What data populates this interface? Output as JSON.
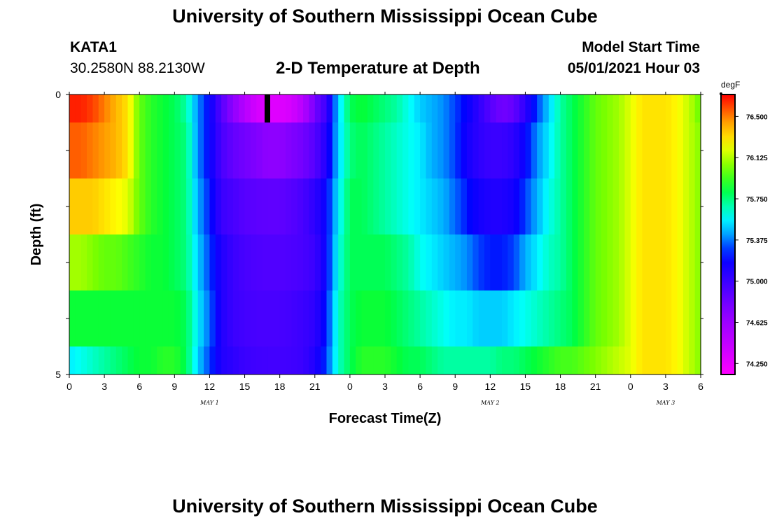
{
  "page": {
    "title_top": "University of Southern Mississippi Ocean Cube",
    "title_bottom": "University of Southern Mississippi Ocean Cube",
    "station_id": "KATA1",
    "station_coords": "30.2580N  88.2130W",
    "plot_title": "2-D Temperature at Depth",
    "model_start_label": "Model Start Time",
    "model_start_value": "05/01/2021 Hour 03"
  },
  "chart_data": {
    "type": "heatmap",
    "title": "2-D Temperature at Depth",
    "xlabel": "Forecast Time(Z)",
    "ylabel": "Depth (ft)",
    "x_range_hours": [
      0,
      54
    ],
    "y_range_ft": [
      0,
      5
    ],
    "x_tick_labels": [
      "0",
      "3",
      "6",
      "9",
      "12",
      "15",
      "18",
      "21",
      "0",
      "3",
      "6",
      "9",
      "12",
      "15",
      "18",
      "21",
      "0",
      "3",
      "6"
    ],
    "y_tick_labels": [
      "0",
      "5"
    ],
    "date_labels": [
      {
        "text": "MAY 1",
        "hour": 12
      },
      {
        "text": "MAY 2",
        "hour": 36
      },
      {
        "text": "MAY 3",
        "hour": 51
      }
    ],
    "colorbar": {
      "unit": "degF",
      "min": 74.15,
      "max": 76.7,
      "tick_labels": [
        "76.500",
        "76.125",
        "75.750",
        "75.375",
        "75.000",
        "74.625",
        "74.250"
      ],
      "tick_values": [
        76.5,
        76.125,
        75.75,
        75.375,
        75.0,
        74.625,
        74.25
      ]
    },
    "layer_depths_ft": [
      0.25,
      1.0,
      2.0,
      3.0,
      4.0,
      4.75
    ],
    "time_hours": [
      0,
      1,
      2,
      3,
      4,
      5,
      6,
      7,
      8,
      9,
      10,
      11,
      12,
      13,
      14,
      15,
      16,
      17,
      18,
      19,
      20,
      21,
      22,
      23,
      24,
      25,
      26,
      27,
      28,
      29,
      30,
      31,
      32,
      33,
      34,
      35,
      36,
      37,
      38,
      39,
      40,
      41,
      42,
      43,
      44,
      45,
      46,
      47,
      48,
      49,
      50,
      51,
      52,
      53,
      54
    ],
    "series": [
      {
        "name": "0.25 ft",
        "values": [
          76.65,
          76.65,
          76.6,
          76.5,
          76.4,
          76.3,
          76.0,
          75.9,
          75.85,
          75.8,
          75.7,
          75.4,
          75.2,
          74.9,
          74.7,
          74.5,
          74.35,
          74.3,
          74.3,
          74.35,
          74.5,
          74.8,
          75.0,
          75.5,
          75.8,
          75.85,
          75.8,
          75.75,
          75.7,
          75.6,
          75.5,
          75.45,
          75.4,
          75.3,
          75.2,
          75.05,
          74.9,
          74.8,
          74.85,
          75.05,
          75.3,
          75.5,
          75.7,
          75.8,
          75.9,
          76.0,
          76.05,
          76.1,
          76.2,
          76.3,
          76.3,
          76.3,
          76.25,
          76.15,
          76.0
        ]
      },
      {
        "name": "1.0 ft",
        "values": [
          76.55,
          76.55,
          76.5,
          76.45,
          76.4,
          76.3,
          76.0,
          75.9,
          75.85,
          75.8,
          75.75,
          75.4,
          75.2,
          74.95,
          74.85,
          74.8,
          74.75,
          74.7,
          74.7,
          74.75,
          74.8,
          74.9,
          75.1,
          75.5,
          75.75,
          75.8,
          75.75,
          75.7,
          75.65,
          75.6,
          75.55,
          75.45,
          75.4,
          75.3,
          75.15,
          75.05,
          75.0,
          75.0,
          75.05,
          75.2,
          75.4,
          75.55,
          75.7,
          75.8,
          75.9,
          76.0,
          76.05,
          76.1,
          76.2,
          76.3,
          76.3,
          76.3,
          76.25,
          76.15,
          76.05
        ]
      },
      {
        "name": "2.0 ft",
        "values": [
          76.35,
          76.35,
          76.35,
          76.3,
          76.25,
          76.2,
          76.0,
          75.9,
          75.85,
          75.8,
          75.75,
          75.45,
          75.25,
          75.0,
          74.95,
          74.9,
          74.88,
          74.87,
          74.87,
          74.9,
          74.95,
          75.05,
          75.2,
          75.55,
          75.8,
          75.8,
          75.75,
          75.7,
          75.65,
          75.6,
          75.55,
          75.5,
          75.45,
          75.35,
          75.25,
          75.15,
          75.1,
          75.1,
          75.15,
          75.3,
          75.45,
          75.6,
          75.7,
          75.8,
          75.9,
          76.0,
          76.05,
          76.1,
          76.2,
          76.3,
          76.3,
          76.3,
          76.25,
          76.15,
          76.05
        ]
      },
      {
        "name": "3.0 ft",
        "values": [
          76.1,
          76.1,
          76.05,
          76.0,
          76.0,
          75.95,
          75.9,
          75.85,
          75.85,
          75.8,
          75.75,
          75.5,
          75.3,
          75.1,
          75.0,
          74.95,
          74.93,
          74.92,
          74.92,
          74.93,
          74.95,
          75.0,
          75.2,
          75.6,
          75.8,
          75.8,
          75.8,
          75.8,
          75.75,
          75.7,
          75.6,
          75.55,
          75.5,
          75.45,
          75.4,
          75.3,
          75.25,
          75.25,
          75.3,
          75.45,
          75.55,
          75.65,
          75.7,
          75.8,
          75.9,
          76.0,
          76.05,
          76.1,
          76.2,
          76.3,
          76.3,
          76.3,
          76.25,
          76.15,
          76.05
        ]
      },
      {
        "name": "4.0 ft",
        "values": [
          75.85,
          75.85,
          75.85,
          75.85,
          75.85,
          75.85,
          75.85,
          75.85,
          75.85,
          75.85,
          75.8,
          75.55,
          75.35,
          75.1,
          75.0,
          74.97,
          74.95,
          74.95,
          74.95,
          74.97,
          75.0,
          75.05,
          75.25,
          75.65,
          75.8,
          75.85,
          75.85,
          75.85,
          75.8,
          75.75,
          75.7,
          75.65,
          75.6,
          75.55,
          75.55,
          75.5,
          75.5,
          75.5,
          75.55,
          75.6,
          75.65,
          75.7,
          75.75,
          75.8,
          75.9,
          76.0,
          76.05,
          76.1,
          76.2,
          76.3,
          76.3,
          76.3,
          76.25,
          76.15,
          76.05
        ]
      },
      {
        "name": "4.75 ft",
        "values": [
          75.55,
          75.6,
          75.65,
          75.7,
          75.75,
          75.8,
          75.85,
          75.85,
          75.9,
          75.9,
          75.8,
          75.5,
          75.3,
          75.1,
          75.05,
          75.0,
          74.98,
          74.97,
          74.97,
          74.98,
          75.0,
          75.1,
          75.3,
          75.65,
          75.8,
          75.9,
          75.9,
          75.9,
          75.85,
          75.8,
          75.8,
          75.75,
          75.7,
          75.7,
          75.7,
          75.7,
          75.7,
          75.75,
          75.75,
          75.8,
          75.85,
          75.9,
          75.95,
          75.95,
          76.0,
          76.05,
          76.1,
          76.15,
          76.2,
          76.3,
          76.3,
          76.3,
          76.25,
          76.15,
          76.05
        ]
      }
    ]
  }
}
